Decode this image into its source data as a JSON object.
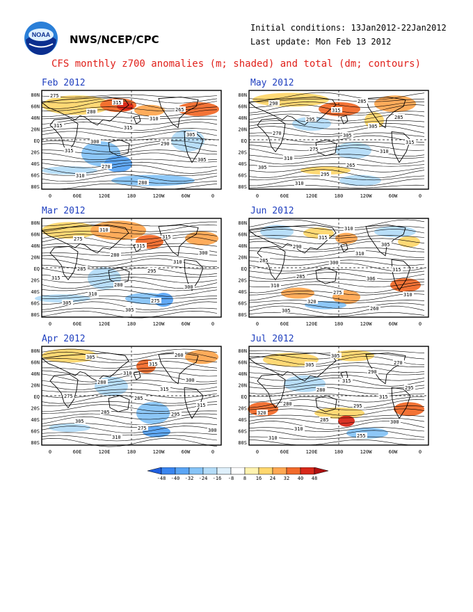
{
  "header": {
    "org": "NWS/NCEP/CPC",
    "initial_conditions": "Initial conditions: 13Jan2012-22Jan2012",
    "last_update": "Last update: Mon Feb 13 2012",
    "title": "CFS monthly z700 anomalies (m; shaded) and total (dm; contours)"
  },
  "colors": {
    "title": "#e0201a",
    "panel_label": "#1f3fbf"
  },
  "axes": {
    "lat_labels": [
      "80N",
      "60N",
      "40N",
      "20N",
      "EQ",
      "20S",
      "40S",
      "60S",
      "80S"
    ],
    "lon_labels": [
      "0",
      "60E",
      "120E",
      "180",
      "120W",
      "60W",
      "0"
    ]
  },
  "panels": [
    {
      "label": "Feb 2012",
      "contour_labels": [
        "275",
        "280",
        "315",
        "290",
        "305",
        "310",
        "315",
        "310",
        "305",
        "315",
        "270",
        "280",
        "265",
        "315",
        "300"
      ]
    },
    {
      "label": "May 2012",
      "contour_labels": [
        "290",
        "295",
        "305",
        "310",
        "305",
        "310",
        "315",
        "305",
        "315",
        "310",
        "295",
        "285",
        "285",
        "270",
        "275",
        "265"
      ]
    },
    {
      "label": "Mar 2012",
      "contour_labels": [
        "275",
        "280",
        "295",
        "300",
        "305",
        "310",
        "315",
        "310",
        "315",
        "310",
        "305",
        "315",
        "300",
        "285",
        "280",
        "275"
      ]
    },
    {
      "label": "Jun 2012",
      "contour_labels": [
        "290",
        "300",
        "306",
        "310",
        "305",
        "315",
        "310",
        "315",
        "310",
        "320",
        "310",
        "305",
        "285",
        "285",
        "275",
        "260"
      ]
    },
    {
      "label": "Apr 2012",
      "contour_labels": [
        "280",
        "285",
        "295",
        "300",
        "305",
        "310",
        "315",
        "315",
        "305",
        "310",
        "315",
        "300",
        "275",
        "285",
        "275",
        "260"
      ]
    },
    {
      "label": "Jul 2012",
      "contour_labels": [
        "280",
        "295",
        "300",
        "310",
        "305",
        "315",
        "315",
        "320",
        "310",
        "305",
        "290",
        "295",
        "280",
        "285",
        "255",
        "270"
      ]
    }
  ],
  "colorbar": {
    "ticks": [
      "-48",
      "-40",
      "-32",
      "-24",
      "-16",
      "-8",
      "8",
      "16",
      "24",
      "32",
      "40",
      "48"
    ],
    "colors": [
      "#1f5fe0",
      "#3a86f0",
      "#5aa5f5",
      "#87c4f7",
      "#b4dcf8",
      "#dff0fb",
      "#ffffff",
      "#fff3b0",
      "#ffd76e",
      "#ffa852",
      "#f26b2b",
      "#d8281a",
      "#b01010"
    ]
  }
}
